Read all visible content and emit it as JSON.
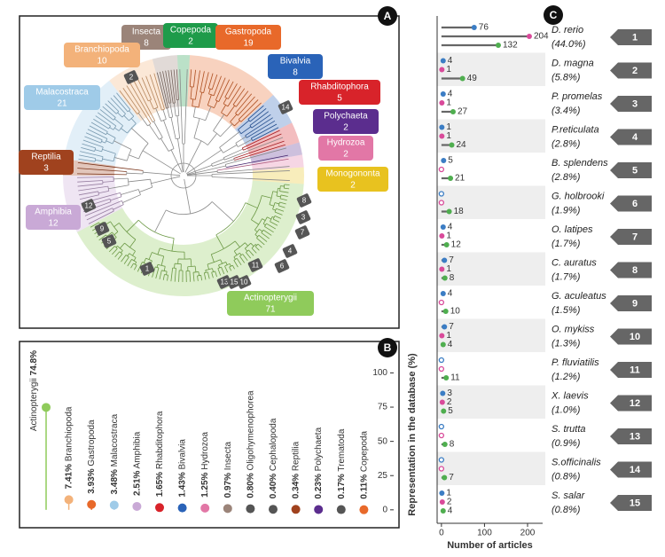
{
  "panels": [
    "A",
    "B",
    "C"
  ],
  "tree": {
    "clades": [
      {
        "name": "Insecta",
        "count": 8,
        "color": "#9b8479"
      },
      {
        "name": "Copepoda",
        "count": 2,
        "color": "#1e9b4a"
      },
      {
        "name": "Gastropoda",
        "count": 19,
        "color": "#e8692a"
      },
      {
        "name": "Branchiopoda",
        "count": 10,
        "color": "#f3b27a"
      },
      {
        "name": "Bivalvia",
        "count": 8,
        "color": "#2a63b8"
      },
      {
        "name": "Malacostraca",
        "count": 21,
        "color": "#9fcbe8"
      },
      {
        "name": "Rhabditophora",
        "count": 5,
        "color": "#d8232a"
      },
      {
        "name": "Polychaeta",
        "count": 2,
        "color": "#5b2d8e"
      },
      {
        "name": "Hydrozoa",
        "count": 2,
        "color": "#e277a6"
      },
      {
        "name": "Reptilia",
        "count": 3,
        "color": "#a0421e"
      },
      {
        "name": "Monogononta",
        "count": 2,
        "color": "#e8c21f"
      },
      {
        "name": "Amphibia",
        "count": 12,
        "color": "#c9a9d6"
      },
      {
        "name": "Actinopterygii",
        "count": 71,
        "color": "#8fcb5b"
      }
    ],
    "markers": [
      1,
      2,
      3,
      4,
      5,
      6,
      7,
      8,
      9,
      10,
      11,
      12,
      13,
      14,
      15
    ]
  },
  "chart_data": [
    {
      "type": "lollipop",
      "orientation": "vertical",
      "ylabel": "Representation in the database (%)",
      "categories": [
        "Actinopterygii",
        "Branchiopoda",
        "Gastropoda",
        "Malacostraca",
        "Amphibia",
        "Rhabditophora",
        "Bivalvia",
        "Hydrozoa",
        "Insecta",
        "Oligohymenophorea",
        "Cephalopoda",
        "Reptilia",
        "Polychaeta",
        "Trematoda",
        "Copepoda"
      ],
      "values": [
        74.8,
        7.41,
        3.93,
        3.48,
        2.51,
        1.65,
        1.43,
        1.25,
        0.97,
        0.8,
        0.4,
        0.34,
        0.23,
        0.17,
        0.11
      ],
      "value_labels": [
        "74.8%",
        "7.41%",
        "3.93%",
        "3.48%",
        "2.51%",
        "1.65%",
        "1.43%",
        "1.25%",
        "0.97%",
        "0.80%",
        "0.40%",
        "0.34%",
        "0.23%",
        "0.17%",
        "0.11%"
      ],
      "colors": [
        "#8fcb5b",
        "#f3b27a",
        "#e8692a",
        "#9fcbe8",
        "#c9a9d6",
        "#d8232a",
        "#2a63b8",
        "#e277a6",
        "#9b8479",
        "#555555",
        "#555555",
        "#a0421e",
        "#5b2d8e",
        "#555555",
        "#e8692a"
      ],
      "ylim": [
        -4,
        110
      ],
      "yticks": [
        0,
        25,
        50,
        75,
        100
      ]
    },
    {
      "type": "lollipop",
      "orientation": "horizontal",
      "xlabel": "Number of articles",
      "categories": [
        "D. rerio",
        "D. magna",
        "P. promelas",
        "P.reticulata",
        "B. splendens",
        "G. holbrooki",
        "O. latipes",
        "C. auratus",
        "G. aculeatus",
        "O. mykiss",
        "P. fluviatilis",
        "X. laevis",
        "S. trutta",
        "S.officinalis",
        "S. salar"
      ],
      "shares": [
        "(44.0%)",
        "(5.8%)",
        "(3.4%)",
        "(2.8%)",
        "(2.8%)",
        "(1.9%)",
        "(1.7%)",
        "(1.7%)",
        "(1.5%)",
        "(1.3%)",
        "(1.2%)",
        "(1.0%)",
        "(0.9%)",
        "(0.8%)",
        "(0.8%)"
      ],
      "ranks": [
        1,
        2,
        3,
        4,
        5,
        6,
        7,
        8,
        9,
        10,
        11,
        12,
        13,
        14,
        15
      ],
      "series": [
        {
          "color": "#3b7dc4",
          "values": [
            76,
            4,
            4,
            1,
            5,
            0,
            4,
            7,
            4,
            7,
            0,
            3,
            0,
            0,
            1
          ]
        },
        {
          "color": "#d94a9a",
          "values": [
            204,
            1,
            1,
            1,
            0,
            0,
            1,
            1,
            0,
            1,
            0,
            2,
            0,
            0,
            2
          ]
        },
        {
          "color": "#4fae4f",
          "values": [
            132,
            49,
            27,
            24,
            21,
            18,
            12,
            8,
            10,
            4,
            11,
            5,
            8,
            7,
            4
          ]
        }
      ],
      "xlim": [
        -10,
        235
      ],
      "xticks": [
        0,
        100,
        200
      ]
    }
  ]
}
